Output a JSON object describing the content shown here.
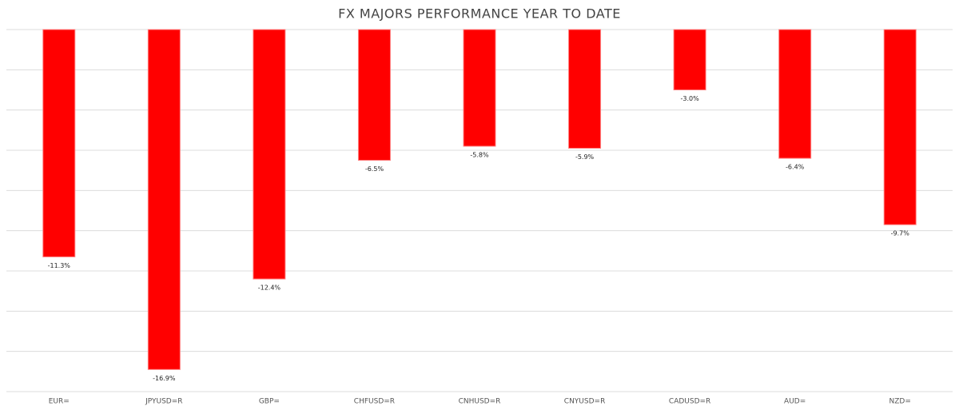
{
  "chart_data": {
    "type": "bar",
    "title": "FX MAJORS PERFORMANCE YEAR TO DATE",
    "categories": [
      "EUR=",
      "JPYUSD=R",
      "GBP=",
      "CHFUSD=R",
      "CNHUSD=R",
      "CNYUSD=R",
      "CADUSD=R",
      "AUD=",
      "NZD="
    ],
    "values": [
      -11.3,
      -16.9,
      -12.4,
      -6.5,
      -5.8,
      -5.9,
      -3.0,
      -6.4,
      -9.7
    ],
    "value_labels": [
      "-11.3%",
      "-16.9%",
      "-12.4%",
      "-6.5%",
      "-5.8%",
      "-5.9%",
      "-3.0%",
      "-6.4%",
      "-9.7%"
    ],
    "color": "#ff0000",
    "ylim": [
      -18,
      0
    ],
    "yticks": [
      0,
      -2,
      -4,
      -6,
      -8,
      -10,
      -12,
      -14,
      -16,
      -18
    ],
    "grid": true
  }
}
